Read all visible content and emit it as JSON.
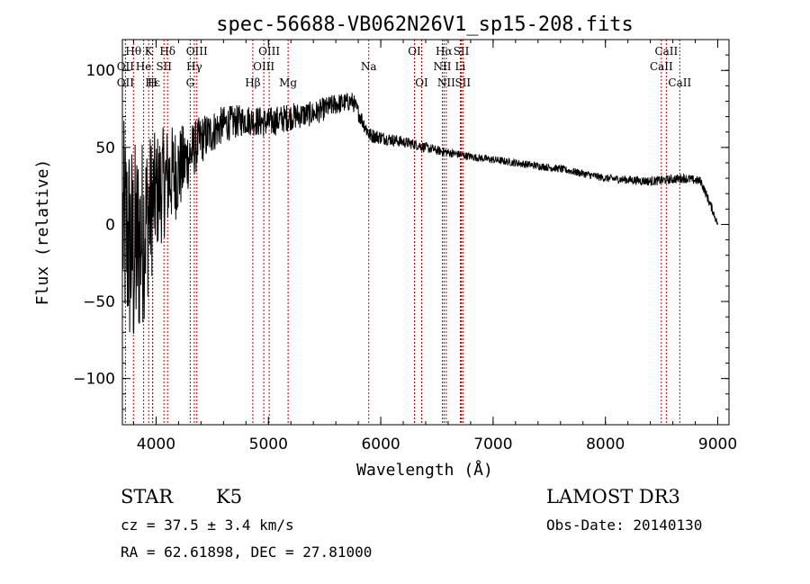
{
  "chart_data": {
    "type": "line",
    "title": "spec-56688-VB062N26V1_sp15-208.fits",
    "xlabel": "Wavelength (Å)",
    "ylabel": "Flux (relative)",
    "xlim": [
      3700,
      9100
    ],
    "ylim": [
      -130,
      120
    ],
    "xticks": [
      4000,
      5000,
      6000,
      7000,
      8000,
      9000
    ],
    "yticks": [
      -100,
      -50,
      0,
      50,
      100
    ],
    "xtick_labels": [
      "4000",
      "5000",
      "6000",
      "7000",
      "8000",
      "9000"
    ],
    "ytick_labels": [
      "−100",
      "−50",
      "0",
      "50",
      "100"
    ],
    "spectrum_anchors": [
      {
        "x": 3700,
        "y": 0,
        "noise": 70
      },
      {
        "x": 3800,
        "y": -20,
        "noise": 75
      },
      {
        "x": 3900,
        "y": 0,
        "noise": 60
      },
      {
        "x": 4000,
        "y": 20,
        "noise": 40
      },
      {
        "x": 4100,
        "y": 30,
        "noise": 35
      },
      {
        "x": 4200,
        "y": 35,
        "noise": 30
      },
      {
        "x": 4300,
        "y": 45,
        "noise": 20
      },
      {
        "x": 4400,
        "y": 55,
        "noise": 16
      },
      {
        "x": 4600,
        "y": 65,
        "noise": 12
      },
      {
        "x": 4800,
        "y": 68,
        "noise": 10
      },
      {
        "x": 5000,
        "y": 66,
        "noise": 10
      },
      {
        "x": 5200,
        "y": 70,
        "noise": 9
      },
      {
        "x": 5400,
        "y": 72,
        "noise": 8
      },
      {
        "x": 5600,
        "y": 78,
        "noise": 7
      },
      {
        "x": 5750,
        "y": 80,
        "noise": 6
      },
      {
        "x": 5900,
        "y": 58,
        "noise": 5
      },
      {
        "x": 6100,
        "y": 55,
        "noise": 4
      },
      {
        "x": 6300,
        "y": 52,
        "noise": 3.5
      },
      {
        "x": 6500,
        "y": 48,
        "noise": 3
      },
      {
        "x": 6800,
        "y": 44,
        "noise": 2.5
      },
      {
        "x": 7200,
        "y": 40,
        "noise": 2.5
      },
      {
        "x": 7600,
        "y": 36,
        "noise": 2.5
      },
      {
        "x": 8000,
        "y": 30,
        "noise": 2.5
      },
      {
        "x": 8400,
        "y": 28,
        "noise": 3
      },
      {
        "x": 8700,
        "y": 30,
        "noise": 3
      },
      {
        "x": 8850,
        "y": 28,
        "noise": 3
      },
      {
        "x": 8950,
        "y": 10,
        "noise": 3
      },
      {
        "x": 9000,
        "y": 0,
        "noise": 2
      }
    ],
    "lines": [
      {
        "label": "Hθ",
        "x": 3798,
        "row": 0
      },
      {
        "label": "K",
        "x": 3934,
        "row": 0
      },
      {
        "label": "Hδ",
        "x": 4102,
        "row": 0
      },
      {
        "label": "OIII",
        "x": 4363,
        "row": 0
      },
      {
        "label": "OIII",
        "x": 5007,
        "row": 0
      },
      {
        "label": "OI",
        "x": 6300,
        "row": 0
      },
      {
        "label": "Hα",
        "x": 6563,
        "row": 0
      },
      {
        "label": "SII",
        "x": 6717,
        "row": 0
      },
      {
        "label": "CaII",
        "x": 8542,
        "row": 0
      },
      {
        "label": "OII",
        "x": 3727,
        "row": 1
      },
      {
        "label": "He",
        "x": 3889,
        "row": 1
      },
      {
        "label": "SII",
        "x": 4070,
        "row": 1
      },
      {
        "label": "Hγ",
        "x": 4340,
        "row": 1
      },
      {
        "label": "OIII",
        "x": 4959,
        "row": 1
      },
      {
        "label": "Na",
        "x": 5893,
        "row": 1
      },
      {
        "label": "NII",
        "x": 6548,
        "row": 1
      },
      {
        "label": "Li",
        "x": 6708,
        "row": 1
      },
      {
        "label": "CaII",
        "x": 8498,
        "row": 1
      },
      {
        "label": "OII",
        "x": 3727,
        "row": 2
      },
      {
        "label": "Hε",
        "x": 3970,
        "row": 2
      },
      {
        "label": "H",
        "x": 3968,
        "row": 2
      },
      {
        "label": "G",
        "x": 4304,
        "row": 2
      },
      {
        "label": "Hβ",
        "x": 4861,
        "row": 2
      },
      {
        "label": "Mg",
        "x": 5175,
        "row": 2
      },
      {
        "label": "OI",
        "x": 6364,
        "row": 2
      },
      {
        "label": "NII",
        "x": 6583,
        "row": 2
      },
      {
        "label": "SII",
        "x": 6731,
        "row": 2
      },
      {
        "label": "CaII",
        "x": 8662,
        "row": 2
      }
    ]
  },
  "info": {
    "class": "STAR",
    "subclass": "K5",
    "survey": "LAMOST DR3",
    "cz": "cz = 37.5 ± 3.4 km/s",
    "obs_date": "Obs-Date: 20140130",
    "radec": "RA =  62.61898, DEC =  27.81000"
  },
  "colors": {
    "line_marker": "#c00000",
    "spectrum": "#000000"
  }
}
